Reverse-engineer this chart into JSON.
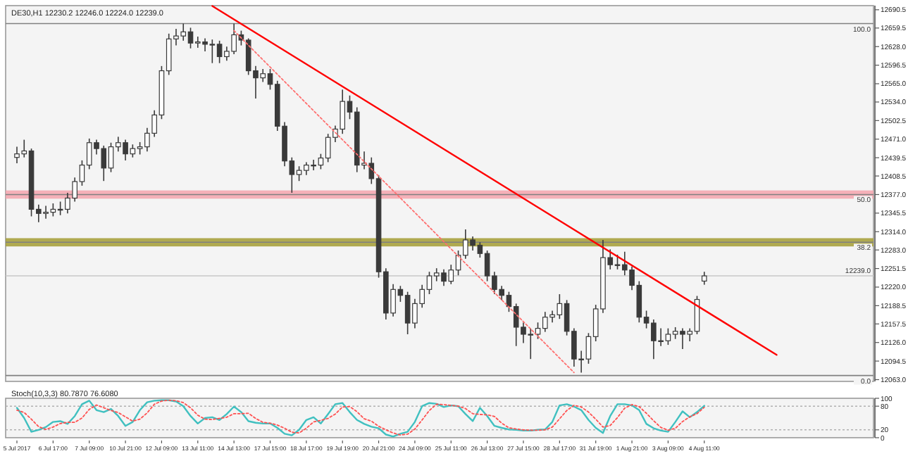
{
  "chart_data": [
    {
      "type": "candlestick",
      "title": "DE30,H1  12230.2 12246.0 12224.0 12239.0",
      "color": "#3a3a3a",
      "categories": [
        null,
        null,
        null,
        null,
        null,
        null,
        null,
        null,
        null,
        null,
        null,
        null,
        null,
        null,
        null,
        null,
        null,
        null,
        null,
        null,
        null,
        null,
        null,
        null,
        null,
        null,
        null,
        null,
        null,
        null,
        null,
        null,
        null,
        null,
        null,
        null,
        null,
        null,
        null,
        null,
        null,
        null,
        null,
        null,
        null,
        null,
        null,
        null,
        null,
        null,
        null,
        null,
        null,
        null,
        null,
        null,
        null,
        null,
        null,
        null,
        null,
        null,
        null,
        null,
        null,
        null,
        null,
        null,
        null,
        null,
        null,
        null,
        null,
        null,
        null,
        null,
        null,
        null,
        null,
        null,
        null,
        null,
        null,
        null,
        null,
        null,
        null,
        null,
        null,
        null,
        null,
        null,
        null,
        null,
        null,
        null,
        null,
        null,
        null,
        null,
        null,
        null,
        null,
        null,
        null,
        null,
        null,
        null,
        null,
        null,
        null,
        null,
        null,
        null,
        null,
        null,
        null,
        null,
        null
      ],
      "ylim": [
        12060,
        12697.5
      ],
      "yticks": [
        {
          "value": 12690.5,
          "label": "12690.5"
        },
        {
          "value": 12659.5,
          "label": "12659.5"
        },
        {
          "value": 12628,
          "label": "12628.0"
        },
        {
          "value": 12596.5,
          "label": "12596.5"
        },
        {
          "value": 12565,
          "label": "12565.0"
        },
        {
          "value": 12534,
          "label": "12534.0"
        },
        {
          "value": 12502.5,
          "label": "12502.5"
        },
        {
          "value": 12471,
          "label": "12471.0"
        },
        {
          "value": 12439.5,
          "label": "12439.5"
        },
        {
          "value": 12408.5,
          "label": "12408.5"
        },
        {
          "value": 12377,
          "label": "12377.0"
        },
        {
          "value": 12345.5,
          "label": "12345.5"
        },
        {
          "value": 12314,
          "label": "12314.0"
        },
        {
          "value": 12283,
          "label": "12283.0"
        },
        {
          "value": 12251.5,
          "label": "12251.5"
        },
        {
          "value": 12220,
          "label": "12220.0"
        },
        {
          "value": 12188.5,
          "label": "12188.5"
        },
        {
          "value": 12157.5,
          "label": "12157.5"
        },
        {
          "value": 12126,
          "label": "12126.0"
        },
        {
          "value": 12094.5,
          "label": "12094.5"
        },
        {
          "value": 12063,
          "label": "12063.0"
        }
      ],
      "ohlc": [
        [
          12440,
          12458,
          12430,
          12446
        ],
        [
          12446,
          12470,
          12440,
          12451
        ],
        [
          12451,
          12455,
          12340,
          12352
        ],
        [
          12352,
          12360,
          12330,
          12345
        ],
        [
          12345,
          12358,
          12336,
          12347
        ],
        [
          12347,
          12362,
          12340,
          12352
        ],
        [
          12352,
          12365,
          12342,
          12352
        ],
        [
          12352,
          12380,
          12345,
          12371
        ],
        [
          12371,
          12406,
          12365,
          12399
        ],
        [
          12399,
          12435,
          12392,
          12427
        ],
        [
          12427,
          12472,
          12420,
          12465
        ],
        [
          12465,
          12470,
          12445,
          12455
        ],
        [
          12455,
          12460,
          12400,
          12422
        ],
        [
          12422,
          12465,
          12415,
          12458
        ],
        [
          12458,
          12475,
          12450,
          12465
        ],
        [
          12465,
          12470,
          12435,
          12446
        ],
        [
          12446,
          12462,
          12440,
          12455
        ],
        [
          12455,
          12466,
          12445,
          12458
        ],
        [
          12458,
          12490,
          12450,
          12481
        ],
        [
          12481,
          12520,
          12475,
          12512
        ],
        [
          12512,
          12595,
          12505,
          12587
        ],
        [
          12587,
          12650,
          12580,
          12641
        ],
        [
          12641,
          12658,
          12630,
          12646
        ],
        [
          12646,
          12667,
          12638,
          12653
        ],
        [
          12653,
          12660,
          12625,
          12634
        ],
        [
          12634,
          12645,
          12626,
          12636
        ],
        [
          12636,
          12642,
          12620,
          12632
        ],
        [
          12632,
          12640,
          12600,
          12632
        ],
        [
          12632,
          12638,
          12600,
          12611
        ],
        [
          12611,
          12628,
          12604,
          12620
        ],
        [
          12620,
          12667,
          12615,
          12648
        ],
        [
          12648,
          12655,
          12630,
          12639
        ],
        [
          12639,
          12642,
          12580,
          12587
        ],
        [
          12587,
          12595,
          12540,
          12575
        ],
        [
          12575,
          12590,
          12568,
          12582
        ],
        [
          12582,
          12590,
          12555,
          12564
        ],
        [
          12564,
          12570,
          12485,
          12493
        ],
        [
          12493,
          12500,
          12425,
          12434
        ],
        [
          12434,
          12440,
          12380,
          12411
        ],
        [
          12411,
          12425,
          12400,
          12418
        ],
        [
          12418,
          12432,
          12410,
          12427
        ],
        [
          12427,
          12436,
          12418,
          12427
        ],
        [
          12427,
          12446,
          12420,
          12439
        ],
        [
          12439,
          12480,
          12432,
          12474
        ],
        [
          12474,
          12494,
          12466,
          12488
        ],
        [
          12488,
          12555,
          12480,
          12535
        ],
        [
          12535,
          12545,
          12505,
          12517
        ],
        [
          12517,
          12525,
          12415,
          12427
        ],
        [
          12427,
          12450,
          12420,
          12430
        ],
        [
          12430,
          12440,
          12395,
          12404
        ],
        [
          12404,
          12410,
          12236,
          12246
        ],
        [
          12246,
          12252,
          12165,
          12176
        ],
        [
          12176,
          12225,
          12170,
          12216
        ],
        [
          12216,
          12222,
          12195,
          12206
        ],
        [
          12206,
          12212,
          12140,
          12159
        ],
        [
          12159,
          12200,
          12150,
          12192
        ],
        [
          12192,
          12224,
          12185,
          12216
        ],
        [
          12216,
          12246,
          12208,
          12239
        ],
        [
          12239,
          12252,
          12230,
          12244
        ],
        [
          12244,
          12250,
          12222,
          12230
        ],
        [
          12230,
          12258,
          12225,
          12249
        ],
        [
          12249,
          12282,
          12240,
          12274
        ],
        [
          12274,
          12318,
          12268,
          12300
        ],
        [
          12300,
          12306,
          12282,
          12291
        ],
        [
          12291,
          12296,
          12270,
          12277
        ],
        [
          12277,
          12282,
          12230,
          12239
        ],
        [
          12239,
          12246,
          12208,
          12216
        ],
        [
          12216,
          12222,
          12198,
          12206
        ],
        [
          12206,
          12212,
          12178,
          12187
        ],
        [
          12187,
          12192,
          12120,
          12152
        ],
        [
          12152,
          12160,
          12125,
          12140
        ],
        [
          12140,
          12150,
          12098,
          12140
        ],
        [
          12140,
          12160,
          12132,
          12150
        ],
        [
          12150,
          12178,
          12144,
          12169
        ],
        [
          12169,
          12180,
          12160,
          12173
        ],
        [
          12173,
          12208,
          12166,
          12192
        ],
        [
          12192,
          12198,
          12138,
          12145
        ],
        [
          12145,
          12150,
          12085,
          12098
        ],
        [
          12098,
          12112,
          12075,
          12098
        ],
        [
          12098,
          12142,
          12090,
          12136
        ],
        [
          12136,
          12190,
          12128,
          12183
        ],
        [
          12183,
          12300,
          12176,
          12270
        ],
        [
          12270,
          12284,
          12250,
          12258
        ],
        [
          12258,
          12275,
          12250,
          12258
        ],
        [
          12258,
          12280,
          12240,
          12249
        ],
        [
          12249,
          12255,
          12215,
          12223
        ],
        [
          12223,
          12230,
          12160,
          12169
        ],
        [
          12169,
          12180,
          12150,
          12159
        ],
        [
          12159,
          12165,
          12098,
          12129
        ],
        [
          12129,
          12150,
          12120,
          12129
        ],
        [
          12129,
          12150,
          12122,
          12140
        ],
        [
          12140,
          12152,
          12132,
          12145
        ],
        [
          12145,
          12150,
          12115,
          12140
        ],
        [
          12140,
          12150,
          12128,
          12145
        ],
        [
          12145,
          12205,
          12140,
          12199
        ],
        [
          12230.2,
          12246.0,
          12224.0,
          12239.0
        ],
        null,
        null,
        null,
        null,
        null,
        null,
        null,
        null,
        null,
        null,
        null,
        null,
        null,
        null,
        null,
        null,
        null,
        null,
        null,
        null,
        null,
        null,
        null
      ],
      "series": [
        {
          "type": "line",
          "color": "#ff0000",
          "line_style": "solid",
          "values": [
            null,
            null,
            null,
            null,
            null,
            null,
            null,
            null,
            null,
            null,
            null,
            null,
            null,
            null,
            null,
            null,
            null,
            null,
            null,
            null,
            null,
            null,
            null,
            null,
            null,
            null,
            null,
            12697,
            null,
            null,
            null,
            null,
            null,
            null,
            null,
            null,
            null,
            null,
            null,
            null,
            null,
            null,
            null,
            null,
            null,
            null,
            null,
            null,
            null,
            null,
            null,
            null,
            null,
            null,
            null,
            null,
            null,
            null,
            null,
            null,
            null,
            null,
            null,
            null,
            null,
            null,
            null,
            null,
            null,
            null,
            null,
            null,
            null,
            null,
            null,
            null,
            null,
            null,
            null,
            null,
            null,
            null,
            null,
            null,
            null,
            null,
            null,
            null,
            null,
            null,
            null,
            null,
            null,
            null,
            null,
            null,
            null,
            null,
            null,
            null,
            null,
            null,
            null,
            null,
            null,
            12105,
            null,
            null,
            null,
            null,
            null,
            null,
            null,
            null,
            null,
            null,
            null,
            null,
            null
          ]
        },
        {
          "type": "line",
          "color": "#ff7070",
          "line_style": "dotted",
          "values": [
            null,
            null,
            null,
            null,
            null,
            null,
            null,
            null,
            null,
            null,
            null,
            null,
            null,
            null,
            null,
            null,
            null,
            null,
            null,
            null,
            null,
            null,
            null,
            null,
            null,
            null,
            null,
            null,
            null,
            null,
            12655,
            null,
            null,
            null,
            null,
            null,
            null,
            null,
            null,
            null,
            null,
            null,
            null,
            null,
            null,
            null,
            null,
            null,
            null,
            null,
            null,
            null,
            null,
            null,
            null,
            null,
            null,
            null,
            null,
            null,
            null,
            null,
            null,
            null,
            null,
            null,
            null,
            null,
            null,
            null,
            null,
            null,
            null,
            null,
            null,
            null,
            null,
            12075,
            null,
            null,
            null,
            null,
            null,
            null,
            null,
            null,
            null,
            null,
            null,
            null,
            null,
            null,
            null,
            null,
            null,
            null,
            null,
            null,
            null,
            null,
            null,
            null,
            null,
            null,
            null,
            null,
            null,
            null,
            null,
            null,
            null,
            null,
            null,
            null,
            null,
            null,
            null,
            null,
            null
          ]
        }
      ],
      "annotations": [
        {
          "text": "100.0",
          "y": 12667
        },
        {
          "text": "50.0",
          "y": 12377
        },
        {
          "text": "38.2",
          "y": 12296
        },
        {
          "text": "0.0",
          "y": 12070
        }
      ],
      "ref_lines": [
        {
          "axis": "y",
          "value": 12667,
          "color": "#808080"
        },
        {
          "axis": "y",
          "value": 12377,
          "color": "#808080"
        },
        {
          "axis": "y",
          "value": 12296,
          "color": "#808080"
        },
        {
          "axis": "y",
          "value": 12070,
          "color": "#808080"
        },
        {
          "axis": "y",
          "value": 12239,
          "label": "12239.0",
          "color": "#c8c8c8"
        }
      ],
      "bands": [
        {
          "axis": "y",
          "from": 12370,
          "to": 12384,
          "color": "#f4a3ad"
        },
        {
          "axis": "y",
          "from": 12289,
          "to": 12303,
          "color": "#a39c32"
        }
      ]
    },
    {
      "type": "line",
      "title": "Stoch(10,3,3) 80.7870 76.6080",
      "categories": [
        "5 Jul 2017",
        null,
        null,
        null,
        null,
        "6 Jul 17:00",
        null,
        null,
        null,
        null,
        "7 Jul 09:00",
        null,
        null,
        null,
        null,
        "10 Jul 21:00",
        null,
        null,
        null,
        null,
        "12 Jul 09:00",
        null,
        null,
        null,
        null,
        "13 Jul 11:00",
        null,
        null,
        null,
        null,
        "14 Jul 13:00",
        null,
        null,
        null,
        null,
        "17 Jul 15:00",
        null,
        null,
        null,
        null,
        "18 Jul 17:00",
        null,
        null,
        null,
        null,
        "19 Jul 19:00",
        null,
        null,
        null,
        null,
        "20 Jul 21:00",
        null,
        null,
        null,
        null,
        "24 Jul 09:00",
        null,
        null,
        null,
        null,
        "25 Jul 11:00",
        null,
        null,
        null,
        null,
        "26 Jul 13:00",
        null,
        null,
        null,
        null,
        "27 Jul 15:00",
        null,
        null,
        null,
        null,
        "28 Jul 17:00",
        null,
        null,
        null,
        null,
        "31 Jul 19:00",
        null,
        null,
        null,
        null,
        "1 Aug 21:00",
        null,
        null,
        null,
        null,
        "3 Aug 09:00",
        null,
        null,
        null,
        null,
        "4 Aug 11:00",
        null,
        null,
        null,
        null,
        null,
        null,
        null,
        null,
        null,
        null,
        null,
        null,
        null,
        null,
        null,
        null,
        null,
        null,
        null,
        null,
        null,
        null,
        null
      ],
      "ylim": [
        0,
        100
      ],
      "yticks": [
        0,
        20,
        80,
        100
      ],
      "ref_lines": [
        {
          "axis": "y",
          "value": 80,
          "color": "#b0b0b0",
          "line_style": "dotted"
        },
        {
          "axis": "y",
          "value": 20,
          "color": "#b0b0b0",
          "line_style": "dotted"
        }
      ],
      "series": [
        {
          "color": "#40c0c0",
          "line_style": "solid",
          "values": [
            76,
            50,
            15,
            20,
            27,
            40,
            42,
            35,
            55,
            85,
            94,
            70,
            65,
            73,
            55,
            30,
            40,
            70,
            90,
            94,
            95,
            95,
            92,
            80,
            55,
            36,
            50,
            52,
            45,
            60,
            79,
            65,
            42,
            38,
            36,
            36,
            25,
            10,
            6,
            20,
            45,
            52,
            36,
            60,
            85,
            88,
            65,
            45,
            35,
            28,
            24,
            8,
            3,
            10,
            15,
            40,
            80,
            88,
            86,
            78,
            82,
            80,
            60,
            42,
            76,
            55,
            30,
            25,
            21,
            20,
            18,
            18,
            20,
            21,
            40,
            82,
            85,
            79,
            70,
            45,
            25,
            12,
            55,
            85,
            85,
            82,
            70,
            35,
            24,
            18,
            15,
            40,
            67,
            52,
            65,
            81,
            null,
            null,
            null,
            null,
            null,
            null,
            null,
            null,
            null,
            null,
            null,
            null,
            null,
            null,
            null,
            null,
            null,
            null,
            null,
            null,
            null,
            null,
            null
          ]
        },
        {
          "color": "#ff5050",
          "line_style": "dotted",
          "values": [
            70,
            64,
            47,
            28,
            21,
            27,
            36,
            39,
            39,
            50,
            72,
            83,
            76,
            69,
            64,
            53,
            42,
            47,
            63,
            85,
            93,
            95,
            94,
            89,
            76,
            57,
            47,
            46,
            49,
            52,
            61,
            61,
            62,
            49,
            39,
            37,
            32,
            24,
            14,
            12,
            24,
            40,
            44,
            49,
            60,
            78,
            79,
            66,
            48,
            42,
            29,
            20,
            12,
            7,
            9,
            22,
            45,
            69,
            85,
            84,
            82,
            80,
            74,
            61,
            59,
            58,
            54,
            37,
            25,
            22,
            20,
            19,
            19,
            20,
            27,
            48,
            69,
            82,
            78,
            65,
            47,
            27,
            31,
            51,
            75,
            84,
            79,
            62,
            43,
            26,
            19,
            24,
            41,
            53,
            61,
            77,
            null,
            null,
            null,
            null,
            null,
            null,
            null,
            null,
            null,
            null,
            null,
            null,
            null,
            null,
            null,
            null,
            null,
            null,
            null,
            null,
            null,
            null,
            null
          ]
        }
      ]
    }
  ]
}
